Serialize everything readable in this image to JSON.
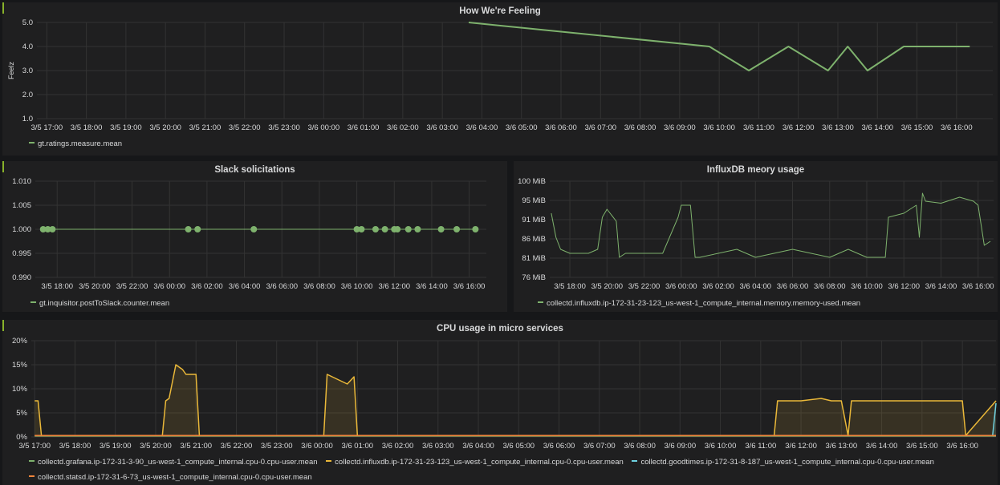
{
  "colors": {
    "green": "#7eb26d",
    "orange": "#ef843c",
    "yellow_orange": "#eab839",
    "cyan": "#6ed0e0",
    "grid": "#333333",
    "text": "#d8d9da"
  },
  "chart_data": [
    {
      "id": "feeling",
      "type": "line",
      "title": "How We're Feeling",
      "ylabel": "Feelz",
      "ylim": [
        1,
        5
      ],
      "yticks": [
        "5.0",
        "4.0",
        "3.0",
        "2.0",
        "1.0"
      ],
      "xticks": [
        "3/5 17:00",
        "3/5 18:00",
        "3/5 19:00",
        "3/5 20:00",
        "3/5 21:00",
        "3/5 22:00",
        "3/5 23:00",
        "3/6 00:00",
        "3/6 01:00",
        "3/6 02:00",
        "3/6 03:00",
        "3/6 04:00",
        "3/6 05:00",
        "3/6 06:00",
        "3/6 07:00",
        "3/6 08:00",
        "3/6 09:00",
        "3/6 10:00",
        "3/6 11:00",
        "3/6 12:00",
        "3/6 13:00",
        "3/6 14:00",
        "3/6 15:00",
        "3/6 16:00"
      ],
      "series": [
        {
          "name": "gt.ratings.measure.mean",
          "x": [
            "3/6 03:40",
            "3/6 09:45",
            "3/6 10:45",
            "3/6 11:45",
            "3/6 12:45",
            "3/6 13:15",
            "3/6 13:45",
            "3/6 14:40",
            "3/6 15:20",
            "3/6 16:20"
          ],
          "y": [
            5.0,
            4.0,
            3.0,
            4.0,
            3.0,
            4.0,
            3.0,
            4.0,
            4.0,
            4.0
          ]
        }
      ]
    },
    {
      "id": "slack",
      "type": "scatter",
      "title": "Slack solicitations",
      "ylim": [
        0.99,
        1.01
      ],
      "yticks": [
        "1.010",
        "1.005",
        "1.000",
        "0.995",
        "0.990"
      ],
      "xticks": [
        "3/5 18:00",
        "3/5 20:00",
        "3/5 22:00",
        "3/6 00:00",
        "3/6 02:00",
        "3/6 04:00",
        "3/6 06:00",
        "3/6 08:00",
        "3/6 10:00",
        "3/6 12:00",
        "3/6 14:00",
        "3/6 16:00"
      ],
      "series": [
        {
          "name": "gt.inquisitor.postToSlack.counter.mean",
          "x": [
            "3/5 17:15",
            "3/5 17:30",
            "3/5 17:45",
            "3/6 01:00",
            "3/6 01:30",
            "3/6 04:30",
            "3/6 10:00",
            "3/6 10:15",
            "3/6 11:00",
            "3/6 11:30",
            "3/6 12:00",
            "3/6 12:10",
            "3/6 12:45",
            "3/6 13:15",
            "3/6 14:30",
            "3/6 15:20",
            "3/6 16:20"
          ],
          "y": [
            1,
            1,
            1,
            1,
            1,
            1,
            1,
            1,
            1,
            1,
            1,
            1,
            1,
            1,
            1,
            1,
            1
          ]
        }
      ]
    },
    {
      "id": "influx-mem",
      "type": "line",
      "title": "InfluxDB meory usage",
      "ylim": [
        76,
        100
      ],
      "yticks": [
        "100 MiB",
        "95 MiB",
        "91 MiB",
        "86 MiB",
        "81 MiB",
        "76 MiB"
      ],
      "xticks": [
        "3/5 18:00",
        "3/5 20:00",
        "3/5 22:00",
        "3/6 00:00",
        "3/6 02:00",
        "3/6 04:00",
        "3/6 06:00",
        "3/6 08:00",
        "3/6 10:00",
        "3/6 12:00",
        "3/6 14:00",
        "3/6 16:00"
      ],
      "series": [
        {
          "name": "collectd.influxdb.ip-172-31-23-123_us-west-1_compute_internal.memory.memory-used.mean",
          "x": [
            "3/5 17:00",
            "3/5 17:15",
            "3/5 17:30",
            "3/5 18:00",
            "3/5 19:00",
            "3/5 19:30",
            "3/5 19:45",
            "3/5 20:00",
            "3/5 20:30",
            "3/5 20:40",
            "3/5 21:00",
            "3/5 22:00",
            "3/5 23:00",
            "3/5 23:50",
            "3/6 00:00",
            "3/6 00:30",
            "3/6 00:45",
            "3/6 01:00",
            "3/6 02:00",
            "3/6 03:00",
            "3/6 04:00",
            "3/6 05:00",
            "3/6 06:00",
            "3/6 07:00",
            "3/6 08:00",
            "3/6 09:00",
            "3/6 10:00",
            "3/6 11:00",
            "3/6 11:10",
            "3/6 12:00",
            "3/6 12:40",
            "3/6 12:50",
            "3/6 13:00",
            "3/6 13:10",
            "3/6 14:00",
            "3/6 15:00",
            "3/6 15:45",
            "3/6 16:00",
            "3/6 16:20",
            "3/6 16:40"
          ],
          "y": [
            92,
            86,
            83,
            82,
            82,
            83,
            91,
            93,
            90,
            81,
            82,
            82,
            82,
            91,
            94,
            94,
            81,
            81,
            82,
            83,
            81,
            82,
            83,
            82,
            81,
            83,
            81,
            81,
            91,
            92,
            94,
            86,
            97,
            95,
            94.5,
            96,
            95,
            94,
            84,
            85
          ]
        }
      ]
    },
    {
      "id": "cpu",
      "type": "area",
      "title": "CPU usage in micro services",
      "ylim": [
        0,
        20
      ],
      "yticks": [
        "20%",
        "15%",
        "10%",
        "5%",
        "0%"
      ],
      "xticks": [
        "3/5 17:00",
        "3/5 18:00",
        "3/5 19:00",
        "3/5 20:00",
        "3/5 21:00",
        "3/5 22:00",
        "3/5 23:00",
        "3/6 00:00",
        "3/6 01:00",
        "3/6 02:00",
        "3/6 03:00",
        "3/6 04:00",
        "3/6 05:00",
        "3/6 06:00",
        "3/6 07:00",
        "3/6 08:00",
        "3/6 09:00",
        "3/6 10:00",
        "3/6 11:00",
        "3/6 12:00",
        "3/6 13:00",
        "3/6 14:00",
        "3/6 15:00",
        "3/6 16:00"
      ],
      "series": [
        {
          "name": "collectd.grafana.ip-172-31-3-90_us-west-1_compute_internal.cpu-0.cpu-user.mean",
          "color": "#7eb26d",
          "x": [
            "3/5 17:00",
            "3/6 16:50"
          ],
          "y": [
            0.2,
            0.2
          ]
        },
        {
          "name": "collectd.influxdb.ip-172-31-23-123_us-west-1_compute_internal.cpu-0.cpu-user.mean",
          "color": "#eab839",
          "x": [
            "3/5 17:00",
            "3/5 17:05",
            "3/5 17:10",
            "3/5 20:10",
            "3/5 20:15",
            "3/5 20:20",
            "3/5 20:30",
            "3/5 20:40",
            "3/5 20:45",
            "3/5 21:00",
            "3/5 21:05",
            "3/6 00:10",
            "3/6 00:15",
            "3/6 00:30",
            "3/6 00:45",
            "3/6 00:55",
            "3/6 01:00",
            "3/6 11:20",
            "3/6 11:25",
            "3/6 12:00",
            "3/6 12:30",
            "3/6 12:45",
            "3/6 13:00",
            "3/6 13:10",
            "3/6 13:15",
            "3/6 14:00",
            "3/6 15:00",
            "3/6 15:45",
            "3/6 16:00",
            "3/6 16:05",
            "3/6 16:50"
          ],
          "y": [
            7.5,
            7.5,
            0.3,
            0.3,
            7.5,
            8.0,
            15.0,
            14.0,
            13.0,
            13.0,
            0.3,
            0.3,
            13.0,
            12.0,
            11.0,
            12.5,
            0.3,
            0.3,
            7.5,
            7.5,
            8.0,
            7.5,
            7.5,
            0.3,
            7.5,
            7.5,
            7.5,
            7.5,
            7.5,
            0.3,
            7.5
          ]
        },
        {
          "name": "collectd.goodtimes.ip-172-31-8-187_us-west-1_compute_internal.cpu-0.cpu-user.mean",
          "color": "#6ed0e0",
          "x": [
            "3/6 16:45",
            "3/6 16:50"
          ],
          "y": [
            0.3,
            7.0
          ]
        },
        {
          "name": "collectd.statsd.ip-172-31-6-73_us-west-1_compute_internal.cpu-0.cpu-user.mean",
          "color": "#ef843c",
          "x": [
            "3/5 17:00",
            "3/6 16:50"
          ],
          "y": [
            0.3,
            0.3
          ]
        }
      ]
    }
  ]
}
